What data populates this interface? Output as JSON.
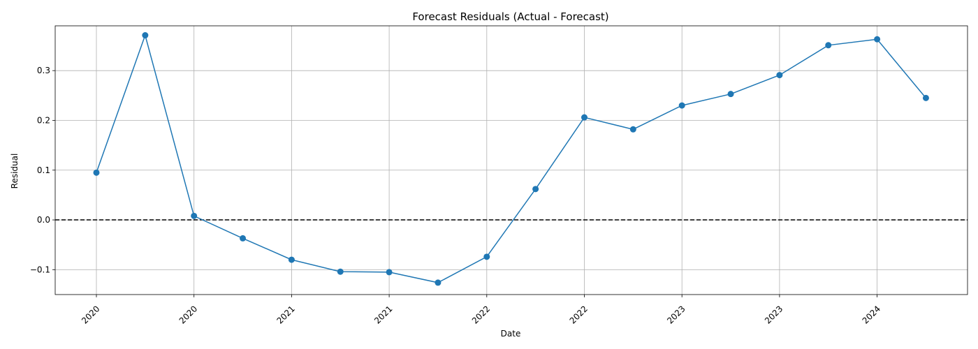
{
  "chart_data": {
    "type": "line",
    "title": "Forecast Residuals (Actual - Forecast)",
    "xlabel": "Date",
    "ylabel": "Residual",
    "x_tick_labels": [
      "2020",
      "2020",
      "2020",
      "2020",
      "2021",
      "2021",
      "2021",
      "2021",
      "2022",
      "2022",
      "2022",
      "2022",
      "2023",
      "2023",
      "2023",
      "2023",
      "2024",
      "2024"
    ],
    "x_tick_labels_shown": [
      "2020",
      "2020",
      "2021",
      "2021",
      "2022",
      "2022",
      "2023",
      "2023",
      "2024"
    ],
    "yticks": [
      -0.1,
      0.0,
      0.1,
      0.2,
      0.3
    ],
    "ylim": [
      -0.15,
      0.39
    ],
    "grid": true,
    "reference_line": {
      "y": 0.0,
      "style": "dashed",
      "color": "#000000"
    },
    "series": [
      {
        "values": [
          0.095,
          0.371,
          0.008,
          -0.037,
          -0.08,
          -0.104,
          -0.105,
          -0.126,
          -0.074,
          0.062,
          0.206,
          0.182,
          0.23,
          0.253,
          0.291,
          0.351,
          0.363,
          0.245
        ],
        "color": "#1f77b4",
        "marker": "circle"
      }
    ]
  }
}
